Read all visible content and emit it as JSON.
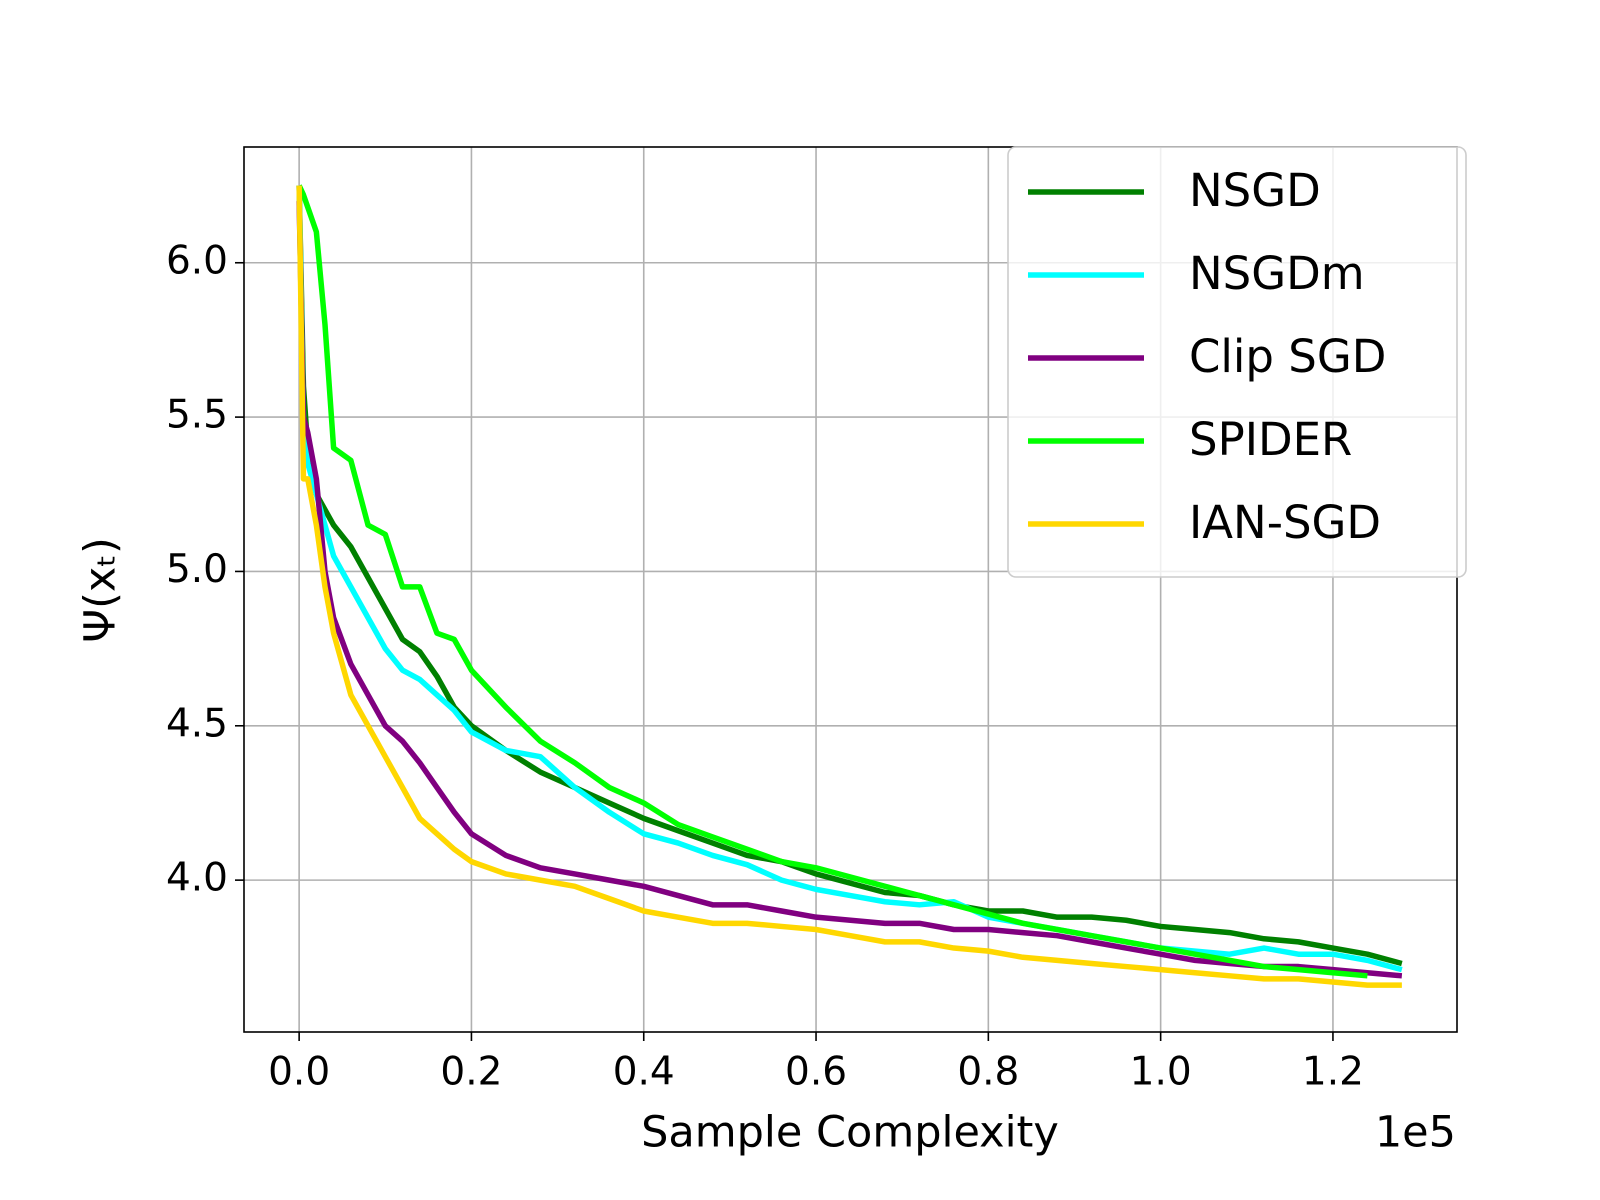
{
  "chart_data": {
    "type": "line",
    "xlabel": "Sample Complexity",
    "ylabel": "Ψ(xₜ)",
    "x_offset_label": "1e5",
    "x": [
      0,
      0.005,
      0.01,
      0.02,
      0.03,
      0.04,
      0.06,
      0.08,
      0.1,
      0.12,
      0.14,
      0.16,
      0.18,
      0.2,
      0.24,
      0.28,
      0.32,
      0.36,
      0.4,
      0.44,
      0.48,
      0.52,
      0.56,
      0.6,
      0.64,
      0.68,
      0.72,
      0.76,
      0.8,
      0.84,
      0.88,
      0.92,
      0.96,
      1.0,
      1.04,
      1.08,
      1.12,
      1.16,
      1.2,
      1.24,
      1.28
    ],
    "series": [
      {
        "name": "NSGD",
        "color": "#008000",
        "values": [
          6.25,
          5.6,
          5.4,
          5.25,
          5.2,
          5.15,
          5.08,
          4.98,
          4.88,
          4.78,
          4.74,
          4.66,
          4.56,
          4.5,
          4.42,
          4.35,
          4.3,
          4.25,
          4.2,
          4.16,
          4.12,
          4.08,
          4.06,
          4.02,
          3.99,
          3.96,
          3.95,
          3.92,
          3.9,
          3.9,
          3.88,
          3.88,
          3.87,
          3.85,
          3.84,
          3.83,
          3.81,
          3.8,
          3.78,
          3.76,
          3.73
        ]
      },
      {
        "name": "NSGDm",
        "color": "#00ffff",
        "values": [
          6.25,
          5.5,
          5.35,
          5.25,
          5.15,
          5.05,
          4.95,
          4.85,
          4.75,
          4.68,
          4.65,
          4.6,
          4.55,
          4.48,
          4.42,
          4.4,
          4.3,
          4.22,
          4.15,
          4.12,
          4.08,
          4.05,
          4.0,
          3.97,
          3.95,
          3.93,
          3.92,
          3.93,
          3.88,
          3.86,
          3.84,
          3.82,
          3.8,
          3.78,
          3.77,
          3.76,
          3.78,
          3.76,
          3.76,
          3.74,
          3.71
        ]
      },
      {
        "name": "Clip SGD",
        "color": "#800080",
        "values": [
          6.2,
          5.5,
          5.45,
          5.3,
          5.0,
          4.85,
          4.7,
          4.6,
          4.5,
          4.45,
          4.38,
          4.3,
          4.22,
          4.15,
          4.08,
          4.04,
          4.02,
          4.0,
          3.98,
          3.95,
          3.92,
          3.92,
          3.9,
          3.88,
          3.87,
          3.86,
          3.86,
          3.84,
          3.84,
          3.83,
          3.82,
          3.8,
          3.78,
          3.76,
          3.74,
          3.73,
          3.72,
          3.72,
          3.71,
          3.7,
          3.69
        ]
      },
      {
        "name": "SPIDER",
        "color": "#00ff00",
        "values": [
          6.25,
          6.22,
          6.18,
          6.1,
          5.8,
          5.4,
          5.36,
          5.15,
          5.12,
          4.95,
          4.95,
          4.8,
          4.78,
          4.68,
          4.56,
          4.45,
          4.38,
          4.3,
          4.25,
          4.18,
          4.14,
          4.1,
          4.06,
          4.04,
          4.01,
          3.98,
          3.95,
          3.92,
          3.89,
          3.86,
          3.84,
          3.82,
          3.8,
          3.78,
          3.76,
          3.74,
          3.72,
          3.71,
          3.7,
          3.69,
          null
        ]
      },
      {
        "name": "IAN-SGD",
        "color": "#ffd700",
        "values": [
          6.25,
          5.3,
          5.3,
          5.15,
          4.95,
          4.8,
          4.6,
          4.5,
          4.4,
          4.3,
          4.2,
          4.15,
          4.1,
          4.06,
          4.02,
          4.0,
          3.98,
          3.94,
          3.9,
          3.88,
          3.86,
          3.86,
          3.85,
          3.84,
          3.82,
          3.8,
          3.8,
          3.78,
          3.77,
          3.75,
          3.74,
          3.73,
          3.72,
          3.71,
          3.7,
          3.69,
          3.68,
          3.68,
          3.67,
          3.66,
          3.66
        ]
      }
    ],
    "xlim": [
      -0.064,
      1.344
    ],
    "ylim": [
      3.508,
      6.375
    ],
    "xticks": [
      {
        "value": 0,
        "label": "0.0"
      },
      0.2,
      0.4,
      0.6,
      0.8,
      {
        "value": 1,
        "label": "1.0"
      },
      1.2
    ],
    "yticks": [
      {
        "value": 4,
        "label": "4.0"
      },
      4.5,
      {
        "value": 5,
        "label": "5.0"
      },
      5.5,
      {
        "value": 6,
        "label": "6.0"
      }
    ],
    "grid": true,
    "legend_position": "upper right"
  }
}
